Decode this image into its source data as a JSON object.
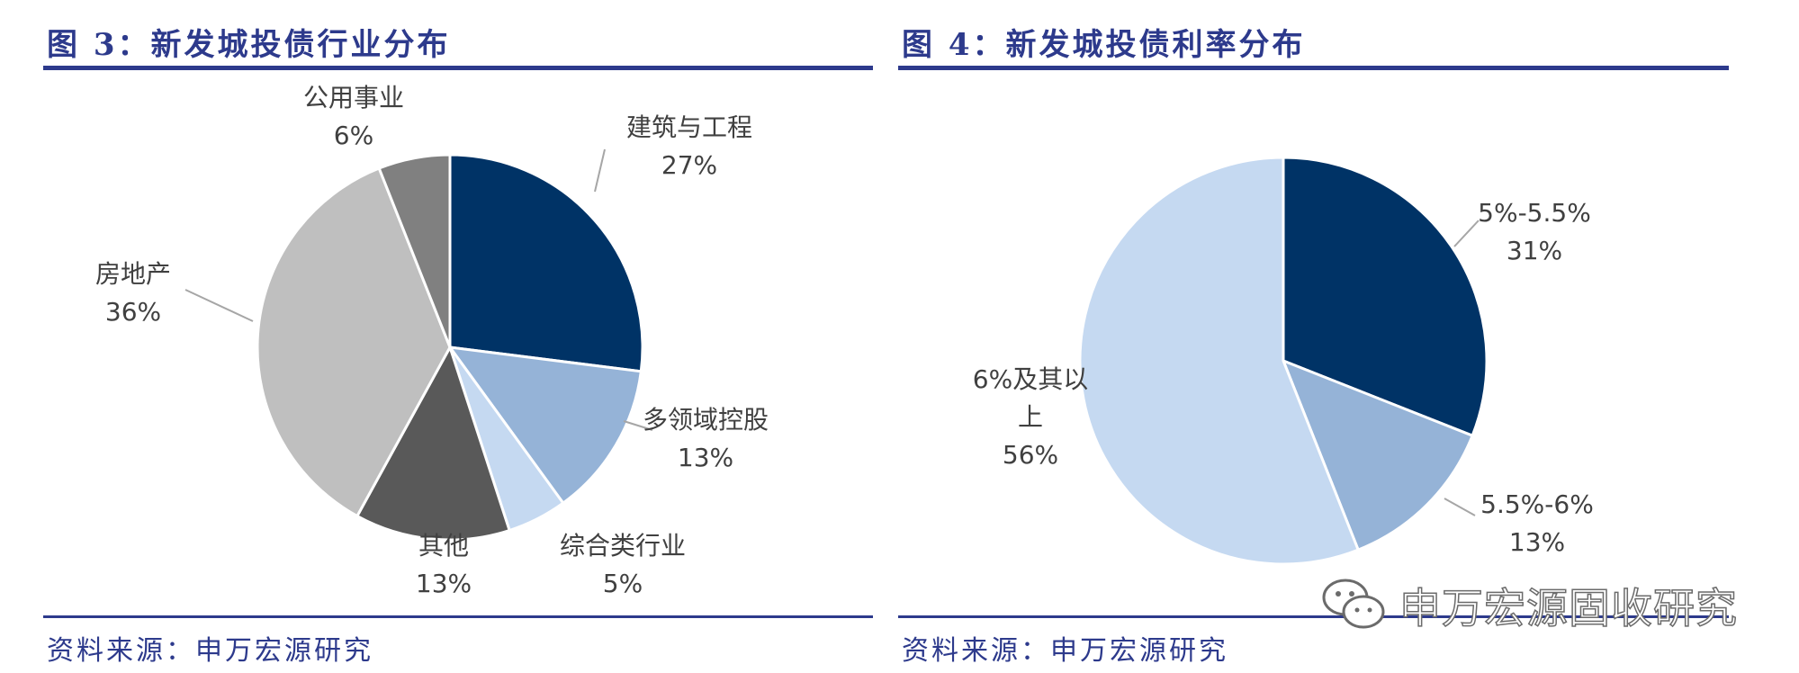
{
  "chart_data": [
    {
      "type": "pie",
      "title": "图 3：新发城投债行业分布",
      "source": "资料来源：申万宏源研究",
      "slices": [
        {
          "label": "建筑与工程",
          "pct_label": "27%",
          "value": 27,
          "color": "#003366"
        },
        {
          "label": "多领域控股",
          "pct_label": "13%",
          "value": 13,
          "color": "#95b3d7"
        },
        {
          "label": "综合类行业",
          "pct_label": "5%",
          "value": 5,
          "color": "#c5d9f1"
        },
        {
          "label": "其他",
          "pct_label": "13%",
          "value": 13,
          "color": "#595959"
        },
        {
          "label": "房地产",
          "pct_label": "36%",
          "value": 36,
          "color": "#bfbfbf"
        },
        {
          "label": "公用事业",
          "pct_label": "6%",
          "value": 6,
          "color": "#808080"
        }
      ]
    },
    {
      "type": "pie",
      "title": "图 4：新发城投债利率分布",
      "source": "资料来源：申万宏源研究",
      "slices": [
        {
          "label": "5%-5.5%",
          "pct_label": "31%",
          "value": 31,
          "color": "#003366"
        },
        {
          "label": "5.5%-6%",
          "pct_label": "13%",
          "value": 13,
          "color": "#95b3d7"
        },
        {
          "label": "6%及其以上",
          "label_lines": [
            "6%及其以",
            "上"
          ],
          "pct_label": "56%",
          "value": 56,
          "color": "#c5d9f1"
        }
      ]
    }
  ],
  "watermark": {
    "text": "申万宏源固收研究",
    "icon": "wechat-icon"
  }
}
